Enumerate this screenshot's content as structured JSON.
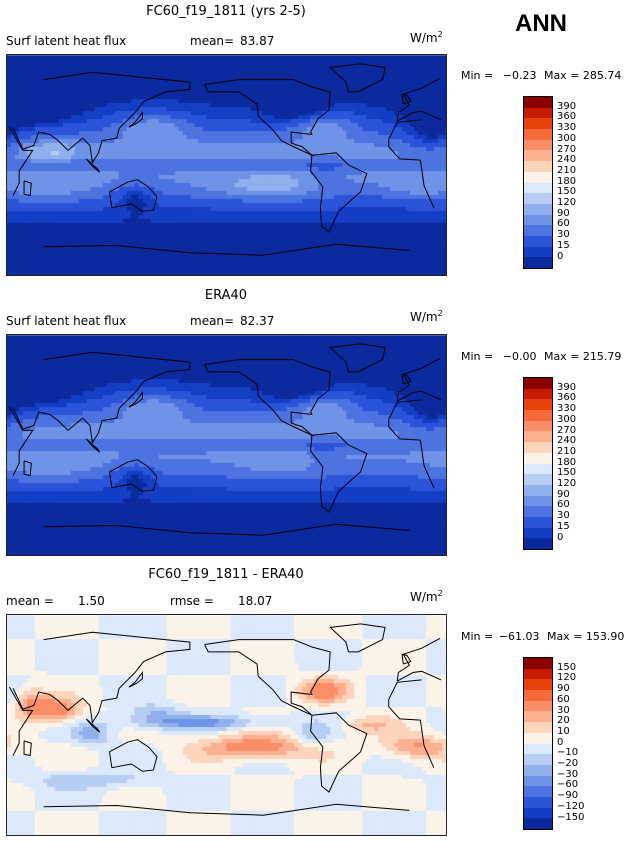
{
  "season": "ANN",
  "panels": [
    {
      "title": "FC60_f19_1811 (yrs 2-5)",
      "left_label": "Surf latent heat flux",
      "stat_label": "mean=",
      "stat_value": "83.87",
      "units": "W/m",
      "units_exp": "2",
      "min_label": "Min =",
      "min_value": "−0.23",
      "max_label": "Max =",
      "max_value": "285.74",
      "levels": [
        "390",
        "360",
        "330",
        "300",
        "270",
        "240",
        "210",
        "180",
        "150",
        "120",
        "90",
        "60",
        "30",
        "15",
        "0"
      ],
      "colors": [
        "#8b0000",
        "#c71b00",
        "#e8420a",
        "#f56a3a",
        "#f98e66",
        "#fbb08f",
        "#fcd3bb",
        "#fcf3e8",
        "#dbe9fa",
        "#b7cdf3",
        "#8fb0ec",
        "#6f93e6",
        "#4c73df",
        "#2b54d9",
        "#153ec6",
        "#0a2a9e"
      ],
      "contour_levels": [
        15,
        30,
        60,
        90,
        120,
        150,
        180,
        210,
        240,
        270,
        300,
        330,
        360,
        390
      ],
      "field": "model"
    },
    {
      "title": "ERA40",
      "left_label": "Surf latent heat flux",
      "stat_label": "mean=",
      "stat_value": "82.37",
      "units": "W/m",
      "units_exp": "2",
      "min_label": "Min =",
      "min_value": "−0.00",
      "max_label": "Max =",
      "max_value": "215.79",
      "levels": [
        "390",
        "360",
        "330",
        "300",
        "270",
        "240",
        "210",
        "180",
        "150",
        "120",
        "90",
        "60",
        "30",
        "15",
        "0"
      ],
      "colors": [
        "#8b0000",
        "#c71b00",
        "#e8420a",
        "#f56a3a",
        "#f98e66",
        "#fbb08f",
        "#fcd3bb",
        "#fcf3e8",
        "#dbe9fa",
        "#b7cdf3",
        "#8fb0ec",
        "#6f93e6",
        "#4c73df",
        "#2b54d9",
        "#153ec6",
        "#0a2a9e"
      ],
      "contour_levels": [
        15,
        30,
        60,
        90,
        120,
        150,
        180,
        210,
        240,
        270,
        300,
        330,
        360,
        390
      ],
      "field": "obs"
    },
    {
      "title": "FC60_f19_1811 - ERA40",
      "left_label": "mean =",
      "left_value": "1.50",
      "stat_label": "rmse =",
      "stat_value": "18.07",
      "units": "W/m",
      "units_exp": "2",
      "min_label": "Min =",
      "min_value": "−61.03",
      "max_label": "Max =",
      "max_value": "153.90",
      "levels": [
        "150",
        "120",
        "90",
        "60",
        "30",
        "20",
        "10",
        "0",
        "−10",
        "−20",
        "−30",
        "−60",
        "−90",
        "−120",
        "−150"
      ],
      "colors": [
        "#8b0000",
        "#c71b00",
        "#e8420a",
        "#f56a3a",
        "#f98e66",
        "#fbb08f",
        "#fcd3bb",
        "#fcf3e8",
        "#dbe9fa",
        "#b7cdf3",
        "#8fb0ec",
        "#6f93e6",
        "#4c73df",
        "#2b54d9",
        "#153ec6",
        "#0a2a9e"
      ],
      "contour_levels": [
        -150,
        -120,
        -90,
        -60,
        -30,
        -20,
        -10,
        0,
        10,
        20,
        30,
        60,
        90,
        120,
        150
      ],
      "field": "diff"
    }
  ]
}
